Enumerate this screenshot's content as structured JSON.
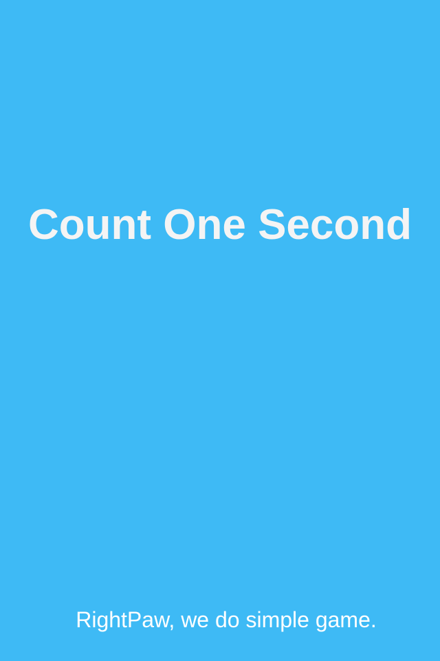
{
  "app": {
    "title": "Count One Second",
    "tagline": "RightPaw, we do simple game."
  },
  "colors": {
    "background": "#3ebaf5",
    "title_text": "#f4f4f4",
    "footer_text": "#ffffff"
  }
}
